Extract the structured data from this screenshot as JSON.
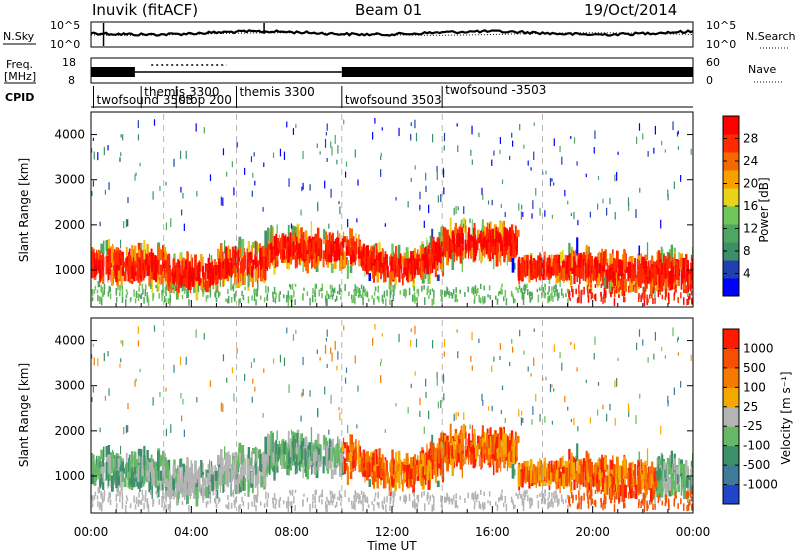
{
  "header": {
    "station": "Inuvik (fitACF)",
    "beam": "Beam 01",
    "date": "19/Oct/2014"
  },
  "strips": {
    "noise_left_label": "N.Sky",
    "noise_right_label": "N.Search",
    "noise_left_ticks": [
      "10^5",
      "10^0"
    ],
    "noise_right_ticks": [
      "10^5",
      "10^0"
    ],
    "freq_label_1": "Freq.",
    "freq_label_2": "[MHz]",
    "freq_ticks": [
      "18",
      "8"
    ],
    "nave_label": "Nave",
    "nave_ticks": [
      "60",
      "0"
    ],
    "cpid_label": "CPID",
    "cpid_entries": [
      {
        "text": "twofsound 3503",
        "t": 0.1
      },
      {
        "text": "themis 3300",
        "t": 2.0
      },
      {
        "text": "stop 200",
        "t": 3.4
      },
      {
        "text": "themis 3300",
        "t": 5.8
      },
      {
        "text": "twofsound 3503",
        "t": 10.0
      },
      {
        "text": "twofsound -3503",
        "t": 14.0
      }
    ]
  },
  "colors": {
    "power_scale": [
      "#0000ff",
      "#2040b0",
      "#3d8f6a",
      "#4fa660",
      "#6fc65a",
      "#e7d31a",
      "#f7a000",
      "#f56a00",
      "#ff2a00",
      "#ff0000"
    ],
    "velocity_scale": [
      "#2045c8",
      "#3f7a9a",
      "#3d8f6a",
      "#66b866",
      "#b4b4b4",
      "#f5a800",
      "#f57a00",
      "#f55000",
      "#ff1a00"
    ]
  },
  "chart_data": [
    {
      "type": "heatmap",
      "name": "power",
      "ylabel": "Slant Range [km]",
      "ylim": [
        180,
        4500
      ],
      "yticks": [
        1000,
        2000,
        3000,
        4000
      ],
      "xlim": [
        0,
        24
      ],
      "xticks": [
        "00:00",
        "04:00",
        "08:00",
        "12:00",
        "16:00",
        "20:00",
        "00:00"
      ],
      "colorbar_label": "Power [dB]",
      "colorbar_ticks": [
        "28",
        "24",
        "20",
        "16",
        "12",
        "8",
        "4"
      ],
      "colorbar_range": [
        0,
        30
      ]
    },
    {
      "type": "heatmap",
      "name": "velocity",
      "ylabel": "Slant Range [km]",
      "xlabel": "Time UT",
      "ylim": [
        180,
        4500
      ],
      "yticks": [
        1000,
        2000,
        3000,
        4000
      ],
      "xlim": [
        0,
        24
      ],
      "xticks": [
        "00:00",
        "04:00",
        "08:00",
        "12:00",
        "16:00",
        "20:00",
        "00:00"
      ],
      "colorbar_label": "Velocity [m s⁻¹]",
      "colorbar_ticks": [
        "1000",
        "500",
        "100",
        "25",
        "-25",
        "-100",
        "-500",
        "-1000"
      ]
    }
  ]
}
